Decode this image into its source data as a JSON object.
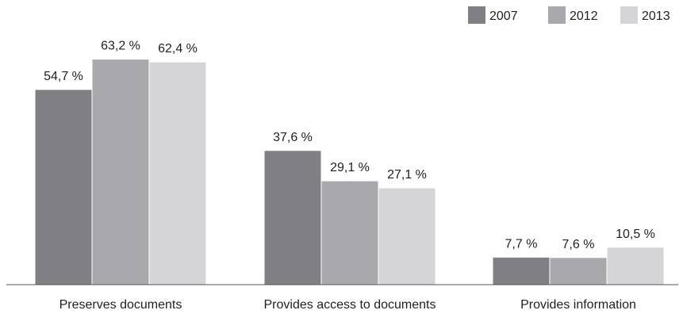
{
  "chart_data": {
    "type": "bar",
    "categories": [
      "Preserves documents",
      "Provides access to documents",
      "Provides information"
    ],
    "series": [
      {
        "name": "2007",
        "color": "#808084",
        "values": [
          54.7,
          37.6,
          7.7
        ],
        "labels": [
          "54,7 %",
          "37,6 %",
          "7,7 %"
        ]
      },
      {
        "name": "2012",
        "color": "#a9a9ad",
        "values": [
          63.2,
          29.1,
          7.6
        ],
        "labels": [
          "63,2 %",
          "29,1 %",
          "7,6 %"
        ]
      },
      {
        "name": "2013",
        "color": "#d5d5d7",
        "values": [
          62.4,
          27.1,
          10.5
        ],
        "labels": [
          "62,4 %",
          "27,1 %",
          "10,5 %"
        ]
      }
    ],
    "title": "",
    "xlabel": "",
    "ylabel": "",
    "ylim": [
      0,
      65
    ],
    "grid": false,
    "legend_position": "top-right"
  }
}
